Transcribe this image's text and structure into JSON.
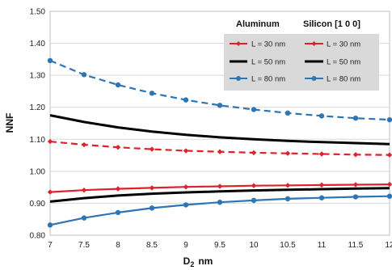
{
  "chart_data": {
    "type": "line",
    "xlabel_main": "D",
    "xlabel_sub": "2",
    "xlabel_unit": "nm",
    "ylabel": "NNF",
    "xlim": [
      7,
      12
    ],
    "ylim": [
      0.8,
      1.5
    ],
    "x_ticks": [
      "7",
      "7.5",
      "8",
      "8.5",
      "9",
      "9.5",
      "10",
      "10.5",
      "11",
      "11.5",
      "12"
    ],
    "y_ticks": [
      "0.80",
      "0.90",
      "1.00",
      "1.10",
      "1.20",
      "1.30",
      "1.40",
      "1.50"
    ],
    "grid": "horizontal",
    "legend": {
      "placement": "top-right",
      "groups": [
        "Aluminum",
        "Silicon [1 0 0]"
      ],
      "entries": [
        "L = 30 nm",
        "L = 50 nm",
        "L = 80 nm"
      ]
    },
    "x": [
      7,
      7.5,
      8,
      8.5,
      9,
      9.5,
      10,
      10.5,
      11,
      11.5,
      12
    ],
    "series": [
      {
        "name": "Aluminum L = 30 nm",
        "color": "#e0212b",
        "dash": false,
        "markers": true,
        "values": [
          0.935,
          0.941,
          0.945,
          0.948,
          0.951,
          0.953,
          0.955,
          0.956,
          0.957,
          0.958,
          0.959
        ]
      },
      {
        "name": "Aluminum L = 50 nm",
        "color": "#000000",
        "dash": false,
        "markers": false,
        "values": [
          0.905,
          0.916,
          0.924,
          0.93,
          0.934,
          0.937,
          0.94,
          0.942,
          0.944,
          0.946,
          0.947
        ]
      },
      {
        "name": "Aluminum L = 80 nm",
        "color": "#2e75b6",
        "dash": false,
        "markers": true,
        "values": [
          0.832,
          0.854,
          0.871,
          0.885,
          0.895,
          0.903,
          0.909,
          0.914,
          0.917,
          0.92,
          0.922
        ]
      },
      {
        "name": "Silicon [1 0 0] L = 30 nm",
        "color": "#e0212b",
        "dash": true,
        "markers": true,
        "values": [
          1.093,
          1.083,
          1.075,
          1.069,
          1.064,
          1.061,
          1.058,
          1.056,
          1.054,
          1.052,
          1.051
        ]
      },
      {
        "name": "Silicon [1 0 0] L = 50 nm",
        "color": "#000000",
        "dash": false,
        "markers": false,
        "values": [
          1.175,
          1.154,
          1.137,
          1.124,
          1.114,
          1.106,
          1.1,
          1.095,
          1.091,
          1.088,
          1.085
        ]
      },
      {
        "name": "Silicon [1 0 0] L = 80 nm",
        "color": "#2e75b6",
        "dash": true,
        "markers": true,
        "values": [
          1.346,
          1.302,
          1.27,
          1.244,
          1.223,
          1.206,
          1.193,
          1.182,
          1.173,
          1.166,
          1.161
        ]
      }
    ]
  }
}
